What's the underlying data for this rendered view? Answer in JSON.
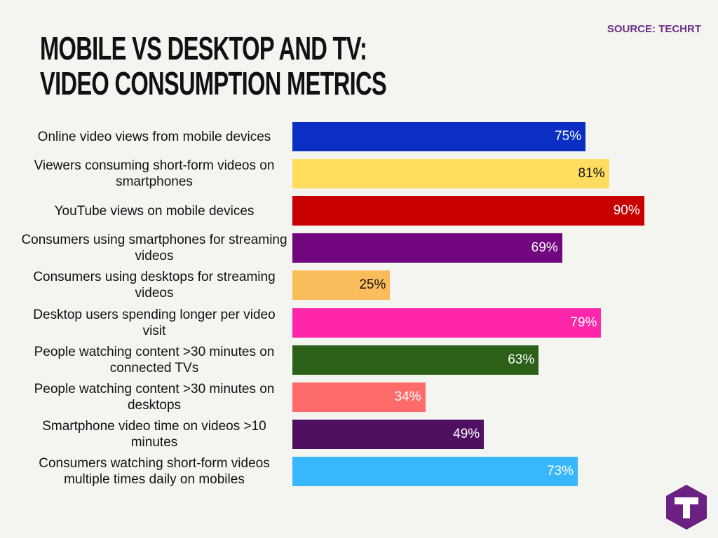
{
  "chart_data": {
    "type": "bar",
    "orientation": "horizontal",
    "title": "MOBILE VS DESKTOP AND TV: VIDEO CONSUMPTION METRICS",
    "source": "SOURCE: TECHRT",
    "categories": [
      "Online video views from mobile devices",
      "Viewers consuming short-form videos on smartphones",
      "YouTube views on mobile devices",
      "Consumers using smartphones for streaming videos",
      "Consumers using desktops for streaming videos",
      "Desktop users spending longer per video visit",
      "People watching content >30 minutes on connected TVs",
      "People watching content >30 minutes on desktops",
      "Smartphone video time on videos >10 minutes",
      "Consumers watching short-form videos multiple times daily on mobiles"
    ],
    "values": [
      75,
      81,
      90,
      69,
      25,
      79,
      63,
      34,
      49,
      73
    ],
    "value_labels": [
      "75%",
      "81%",
      "90%",
      "69%",
      "25%",
      "79%",
      "63%",
      "34%",
      "49%",
      "73%"
    ],
    "colors": [
      "#0a2fc2",
      "#fedd5f",
      "#c80000",
      "#71067f",
      "#fbbd5b",
      "#ff26a9",
      "#2c5f18",
      "#fe6b6b",
      "#4f1062",
      "#38b6fe"
    ]
  }
}
